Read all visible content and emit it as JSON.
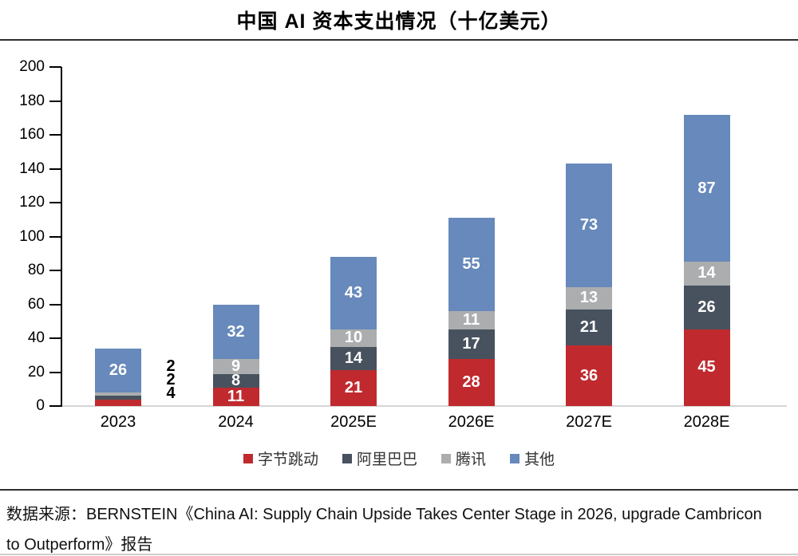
{
  "chart_data": {
    "type": "bar",
    "stacked": true,
    "title": "中国 AI 资本支出情况（十亿美元）",
    "categories": [
      "2023",
      "2024",
      "2025E",
      "2026E",
      "2027E",
      "2028E"
    ],
    "series": [
      {
        "name": "字节跳动",
        "color": "#c02a2e",
        "values": [
          4,
          11,
          21,
          28,
          36,
          45
        ]
      },
      {
        "name": "阿里巴巴",
        "color": "#47525e",
        "values": [
          2,
          8,
          14,
          17,
          21,
          26
        ]
      },
      {
        "name": "腾讯",
        "color": "#abadaf",
        "values": [
          2,
          9,
          10,
          11,
          13,
          14
        ]
      },
      {
        "name": "其他",
        "color": "#6789bb",
        "values": [
          26,
          32,
          43,
          55,
          73,
          87
        ]
      }
    ],
    "totals": [
      34,
      60,
      88,
      111,
      143,
      172
    ],
    "ylim": [
      0,
      200
    ],
    "ytick_step": 20,
    "grid": false,
    "legend_position": "bottom",
    "bar_label_color": "#ffffff",
    "external_labels": {
      "category": "2023",
      "note": "values too small for in-bar labels, shown beside bar top-to-bottom",
      "values_top_to_bottom": [
        2,
        2,
        4
      ]
    }
  },
  "source": {
    "lines": [
      "数据来源：BERNSTEIN《China AI: Supply Chain Upside Takes Center Stage in 2026, upgrade Cambricon",
      "to Outperform》报告"
    ]
  }
}
